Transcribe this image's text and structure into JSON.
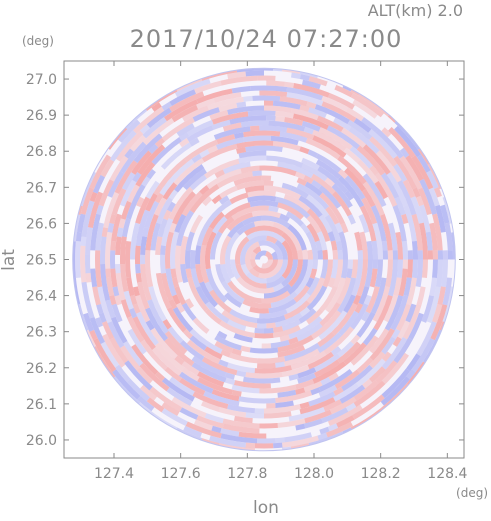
{
  "header": {
    "altitude_label": "ALT(km)  2.0",
    "datetime": "2017/10/24 07:27:00"
  },
  "chart_data": {
    "type": "heatmap",
    "title": "2017/10/24 07:27:00",
    "annotation": "ALT(km)  2.0",
    "xlabel": "lon",
    "ylabel": "lat",
    "x_unit": "(deg)",
    "y_unit": "(deg)",
    "xlim": [
      127.25,
      128.45
    ],
    "ylim": [
      25.95,
      27.05
    ],
    "x_ticks": [
      "127.4",
      "127.6",
      "127.8",
      "128.0",
      "128.2",
      "128.4"
    ],
    "y_ticks": [
      "26.0",
      "26.1",
      "26.2",
      "26.3",
      "26.4",
      "26.5",
      "26.6",
      "26.7",
      "26.8",
      "26.9",
      "27.0"
    ],
    "center": {
      "lon": 127.85,
      "lat": 26.5
    },
    "radius_deg_lat": 0.53,
    "grid": false,
    "colors": {
      "positive": "#f4a8a8",
      "negative": "#b0b4f2",
      "axis": "#8a8a8a",
      "text": "#8a8a8a"
    }
  }
}
